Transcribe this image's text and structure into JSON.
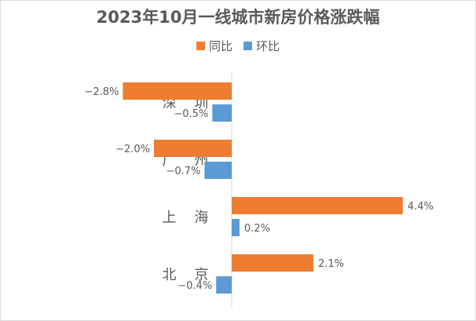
{
  "chart_data": {
    "type": "bar",
    "orientation": "horizontal",
    "title": "2023年10月一线城市新房价格涨跌幅",
    "categories": [
      "深    圳",
      "广    州",
      "上    海",
      "北    京"
    ],
    "series": [
      {
        "name": "同比",
        "color": "#ED7D31",
        "values": [
          -2.8,
          -2.0,
          4.4,
          2.1
        ],
        "labels": [
          "−2.8%",
          "−2.0%",
          "4.4%",
          "2.1%"
        ]
      },
      {
        "name": "环比",
        "color": "#5B9BD5",
        "values": [
          -0.5,
          -0.7,
          0.2,
          -0.4
        ],
        "labels": [
          "−0.5%",
          "−0.7%",
          "0.2%",
          "−0.4%"
        ]
      }
    ],
    "xlim": [
      -3.2,
      4.8
    ],
    "legend": "top",
    "grid": false
  }
}
